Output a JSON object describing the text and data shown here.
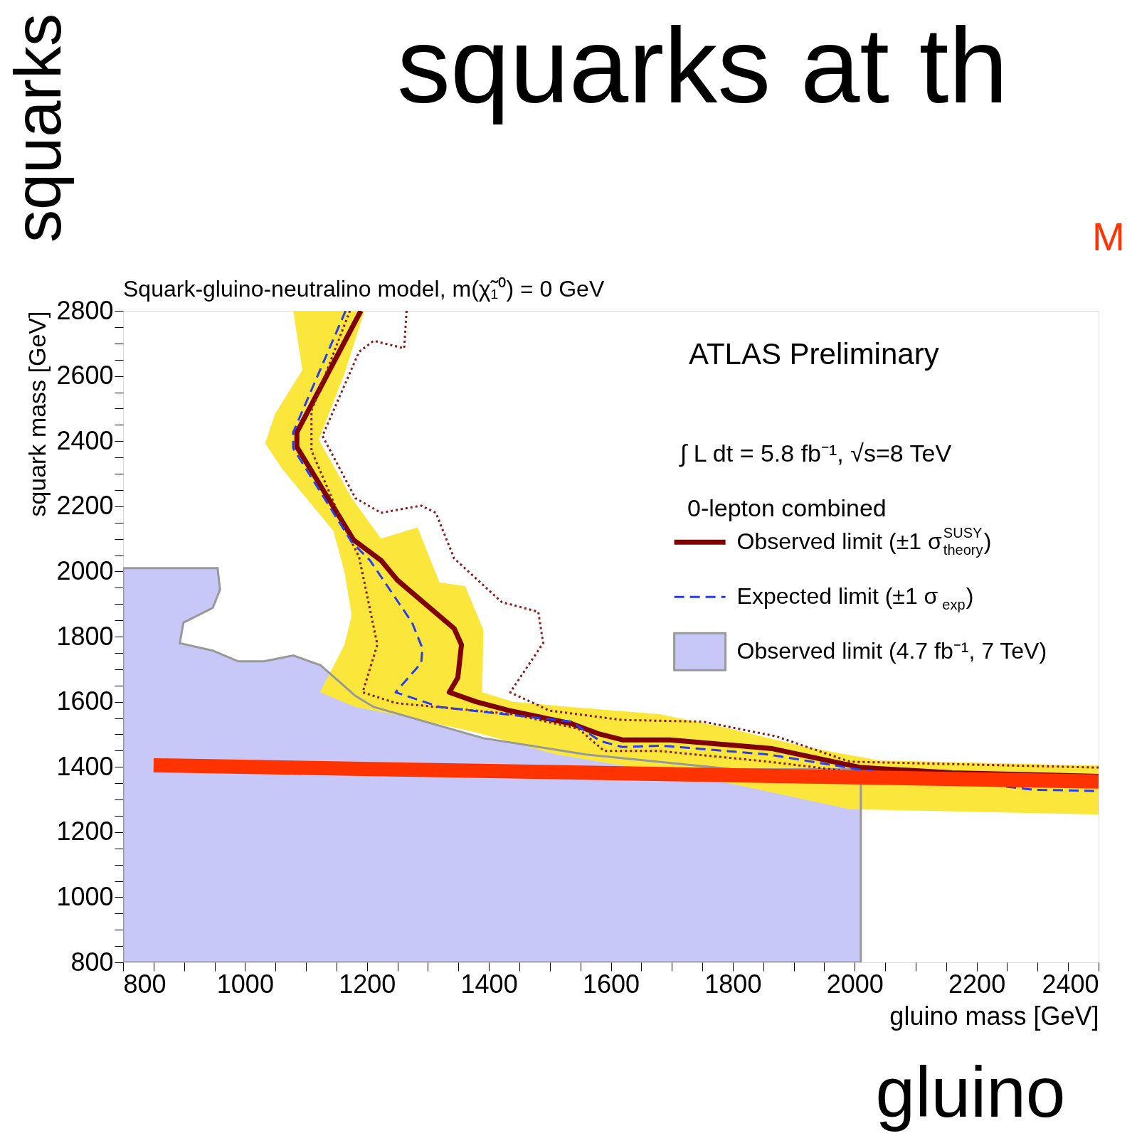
{
  "chart_data": {
    "type": "line",
    "title": "Squark-gluino-neutralino model, m(χ̃₁⁰) = 0 GeV",
    "xlabel": "gluino mass [GeV]",
    "ylabel": "squark mass [GeV]",
    "xlim": [
      800,
      2400
    ],
    "ylim": [
      800,
      2800
    ],
    "xticks": [
      800,
      {
        "value": 850,
        "label": null
      },
      {
        "value": 900,
        "label": null
      },
      {
        "value": 950,
        "label": null
      },
      1000,
      {
        "value": 1050,
        "label": null
      },
      {
        "value": 1100,
        "label": null
      },
      {
        "value": 1150,
        "label": null
      },
      1200,
      {
        "value": 1250,
        "label": null
      },
      {
        "value": 1300,
        "label": null
      },
      {
        "value": 1350,
        "label": null
      },
      1400,
      {
        "value": 1450,
        "label": null
      },
      {
        "value": 1500,
        "label": null
      },
      {
        "value": 1550,
        "label": null
      },
      1600,
      {
        "value": 1650,
        "label": null
      },
      {
        "value": 1700,
        "label": null
      },
      {
        "value": 1750,
        "label": null
      },
      1800,
      {
        "value": 1850,
        "label": null
      },
      {
        "value": 1900,
        "label": null
      },
      {
        "value": 1950,
        "label": null
      },
      2000,
      {
        "value": 2050,
        "label": null
      },
      {
        "value": 2100,
        "label": null
      },
      {
        "value": 2150,
        "label": null
      },
      2200,
      {
        "value": 2250,
        "label": null
      },
      {
        "value": 2300,
        "label": null
      },
      {
        "value": 2350,
        "label": null
      },
      2400
    ],
    "yticks": [
      800,
      {
        "value": 850,
        "label": null
      },
      {
        "value": 900,
        "label": null
      },
      {
        "value": 950,
        "label": null
      },
      1000,
      {
        "value": 1050,
        "label": null
      },
      {
        "value": 1100,
        "label": null
      },
      {
        "value": 1150,
        "label": null
      },
      1200,
      {
        "value": 1250,
        "label": null
      },
      {
        "value": 1300,
        "label": null
      },
      {
        "value": 1350,
        "label": null
      },
      1400,
      {
        "value": 1450,
        "label": null
      },
      {
        "value": 1500,
        "label": null
      },
      {
        "value": 1550,
        "label": null
      },
      1600,
      {
        "value": 1650,
        "label": null
      },
      {
        "value": 1700,
        "label": null
      },
      {
        "value": 1750,
        "label": null
      },
      1800,
      {
        "value": 1850,
        "label": null
      },
      {
        "value": 1900,
        "label": null
      },
      {
        "value": 1950,
        "label": null
      },
      2000,
      {
        "value": 2050,
        "label": null
      },
      {
        "value": 2100,
        "label": null
      },
      {
        "value": 2150,
        "label": null
      },
      2200,
      {
        "value": 2250,
        "label": null
      },
      {
        "value": 2300,
        "label": null
      },
      {
        "value": 2350,
        "label": null
      },
      2400,
      {
        "value": 2450,
        "label": null
      },
      {
        "value": 2500,
        "label": null
      },
      {
        "value": 2550,
        "label": null
      },
      2600,
      {
        "value": 2650,
        "label": null
      },
      {
        "value": 2700,
        "label": null
      },
      {
        "value": 2750,
        "label": null
      },
      2800
    ],
    "grid": false,
    "legend": "right",
    "series": [
      {
        "name": "Observed limit (±1 σ$^{SUSY}$$_{theory}$)",
        "color": "#800000",
        "line_style": "solid",
        "x": [
          1190,
          1085,
          1085,
          1178,
          1223,
          1250,
          1343,
          1355,
          1349,
          1335,
          1379,
          1433,
          1535,
          1581,
          1619,
          1697,
          1865,
          2010,
          2160,
          2400
        ],
        "values": [
          2800,
          2427,
          2382,
          2097,
          2034,
          1973,
          1825,
          1775,
          1674,
          1629,
          1600,
          1573,
          1533,
          1501,
          1483,
          1483,
          1456,
          1398,
          1382,
          1371
        ]
      },
      {
        "color": "#8b1a1a",
        "line_style": "dotted",
        "x": [
          1265,
          1261,
          1211,
          1187,
          1127,
          1181,
          1223,
          1289,
          1313,
          1343,
          1421,
          1481,
          1489,
          1435,
          1499,
          1619,
          1751,
          1871,
          1992,
          2400
        ],
        "values": [
          2800,
          2685,
          2708,
          2674,
          2416,
          2225,
          2180,
          2202,
          2180,
          2040,
          1906,
          1876,
          1780,
          1629,
          1573,
          1544,
          1539,
          1494,
          1416,
          1398
        ]
      },
      {
        "color": "#8b1a1a",
        "line_style": "dotted",
        "x": [
          1172,
          1109,
          1109,
          1163,
          1187,
          1217,
          1193,
          1247,
          1439,
          1547,
          1589,
          1679,
          1859,
          2040,
          2400
        ],
        "values": [
          2800,
          2494,
          2371,
          2135,
          2045,
          1775,
          1629,
          1596,
          1562,
          1517,
          1449,
          1449,
          1416,
          1375,
          1371
        ]
      },
      {
        "name": "Expected limit (±1 σ$_{exp}$)",
        "color": "#2a3cf0",
        "line_style": "dashed",
        "x": [
          1165,
          1079,
          1079,
          1175,
          1205,
          1274,
          1291,
          1289,
          1247,
          1319,
          1535,
          1583,
          1619,
          1685,
          1859,
          2004,
          2292,
          2400
        ],
        "values": [
          2800,
          2427,
          2378,
          2090,
          2034,
          1843,
          1764,
          1719,
          1629,
          1584,
          1539,
          1479,
          1461,
          1465,
          1438,
          1393,
          1330,
          1326
        ]
      },
      {
        "name": "Observed limit (4.7 fb⁻¹, 7 TeV)",
        "color": "#c8c8f8",
        "type": "area",
        "line_style": "solid",
        "x": [
          800,
          955,
          959,
          947,
          899,
          893,
          947,
          989,
          1031,
          1079,
          1124,
          1181,
          1211,
          1391,
          1559,
          1799,
          2010,
          2010,
          800
        ],
        "values": [
          2010,
          2010,
          1944,
          1888,
          1843,
          1780,
          1757,
          1724,
          1724,
          1742,
          1712,
          1618,
          1584,
          1488,
          1438,
          1393,
          1393,
          800,
          800
        ]
      },
      {
        "color": "#fbe73c",
        "type": "area",
        "x": [
          1079,
          1094,
          1049,
          1033,
          1061,
          1145,
          1163,
          1175,
          1163,
          1123,
          1181,
          1271,
          1379,
          1511,
          1619,
          1799,
          1992,
          2400,
          2400,
          2040,
          1920,
          1787,
          1679,
          1535,
          1439,
          1389,
          1391,
          1361,
          1319,
          1283,
          1223,
          1175,
          1121,
          1163,
          1196
        ],
        "values": [
          2800,
          2618,
          2483,
          2393,
          2315,
          2124,
          2000,
          1865,
          1775,
          1629,
          1584,
          1551,
          1506,
          1438,
          1404,
          1348,
          1270,
          1254,
          1404,
          1420,
          1461,
          1521,
          1562,
          1584,
          1600,
          1629,
          1820,
          1955,
          1966,
          2135,
          2101,
          2225,
          2404,
          2607,
          2800
        ]
      },
      {
        "color": "#ff3300",
        "line_style": "solid",
        "x": [
          850,
          2400
        ],
        "values": [
          1405,
          1355
        ]
      }
    ],
    "annotations": [
      "squarks",
      "squarks at th",
      "M",
      "ATLAS Preliminary",
      "∫ L dt = 5.8 fb⁻¹, √s=8 TeV",
      "0-lepton combined",
      "gluino"
    ]
  }
}
